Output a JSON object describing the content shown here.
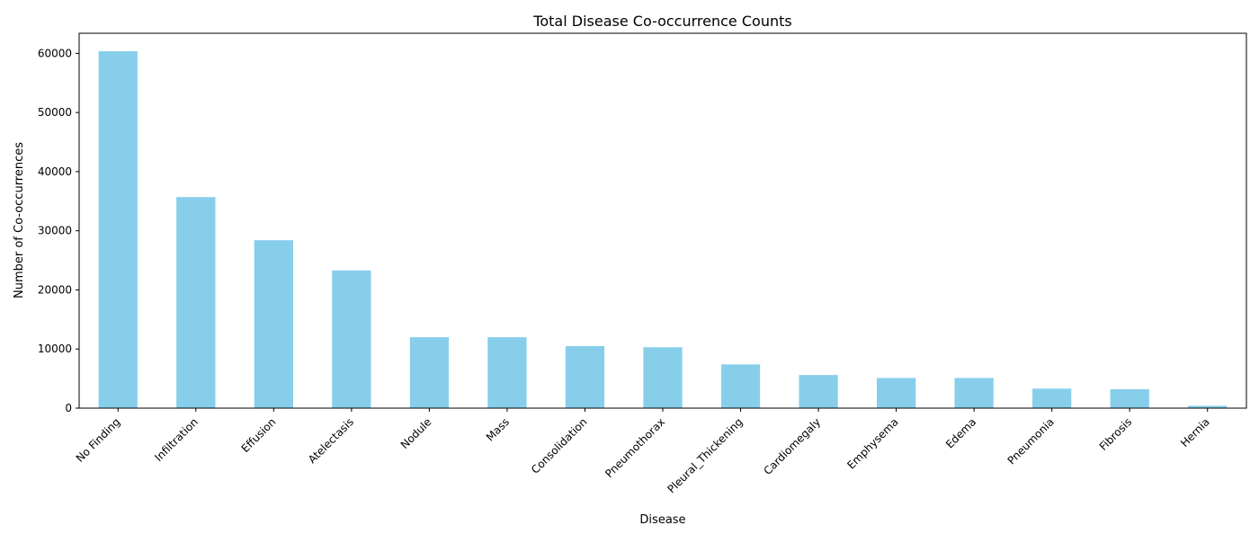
{
  "chart_data": {
    "type": "bar",
    "title": "Total Disease Co-occurrence Counts",
    "xlabel": "Disease",
    "ylabel": "Number of Co-occurrences",
    "categories": [
      "No Finding",
      "Infiltration",
      "Effusion",
      "Atelectasis",
      "Nodule",
      "Mass",
      "Consolidation",
      "Pneumothorax",
      "Pleural_Thickening",
      "Cardiomegaly",
      "Emphysema",
      "Edema",
      "Pneumonia",
      "Fibrosis",
      "Hernia"
    ],
    "values": [
      60361,
      35700,
      28400,
      23300,
      12000,
      12000,
      10500,
      10300,
      7400,
      5600,
      5100,
      5100,
      3300,
      3200,
      400
    ],
    "yticks": [
      0,
      10000,
      20000,
      30000,
      40000,
      50000,
      60000
    ],
    "ylim": [
      0,
      63400
    ],
    "bar_color": "#87ceeb",
    "grid": false,
    "legend": "none"
  }
}
